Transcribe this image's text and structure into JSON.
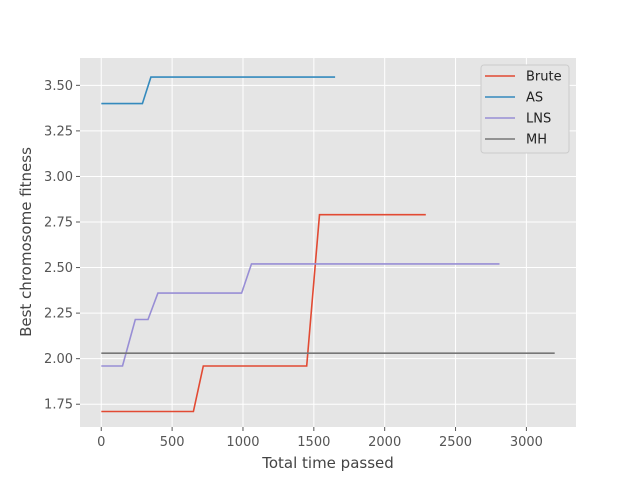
{
  "chart_data": {
    "type": "line",
    "title": "",
    "xlabel": "Total time passed",
    "ylabel": "Best chromosome fitness",
    "xlim": [
      -150,
      3350
    ],
    "ylim": [
      1.625,
      3.65
    ],
    "xticks": [
      0,
      500,
      1000,
      1500,
      2000,
      2500,
      3000
    ],
    "xtick_labels": [
      "0",
      "500",
      "1000",
      "1500",
      "2000",
      "2500",
      "3000"
    ],
    "yticks": [
      1.75,
      2.0,
      2.25,
      2.5,
      2.75,
      3.0,
      3.25,
      3.5
    ],
    "ytick_labels": [
      "1.75",
      "2.00",
      "2.25",
      "2.50",
      "2.75",
      "3.00",
      "3.25",
      "3.50"
    ],
    "grid": true,
    "legend_position": "top-right",
    "series": [
      {
        "name": "Brute",
        "color": "#e24a33",
        "points": [
          [
            0,
            1.71
          ],
          [
            650,
            1.71
          ],
          [
            720,
            1.96
          ],
          [
            1450,
            1.96
          ],
          [
            1540,
            2.79
          ],
          [
            2290,
            2.79
          ]
        ]
      },
      {
        "name": "AS",
        "color": "#348abd",
        "points": [
          [
            0,
            3.4
          ],
          [
            290,
            3.4
          ],
          [
            350,
            3.545
          ],
          [
            1650,
            3.545
          ]
        ]
      },
      {
        "name": "LNS",
        "color": "#988ed5",
        "points": [
          [
            0,
            1.96
          ],
          [
            150,
            1.96
          ],
          [
            240,
            2.215
          ],
          [
            330,
            2.215
          ],
          [
            400,
            2.36
          ],
          [
            990,
            2.36
          ],
          [
            1060,
            2.52
          ],
          [
            2810,
            2.52
          ]
        ]
      },
      {
        "name": "MH",
        "color": "#777777",
        "points": [
          [
            0,
            2.03
          ],
          [
            3200,
            2.03
          ]
        ]
      }
    ]
  }
}
